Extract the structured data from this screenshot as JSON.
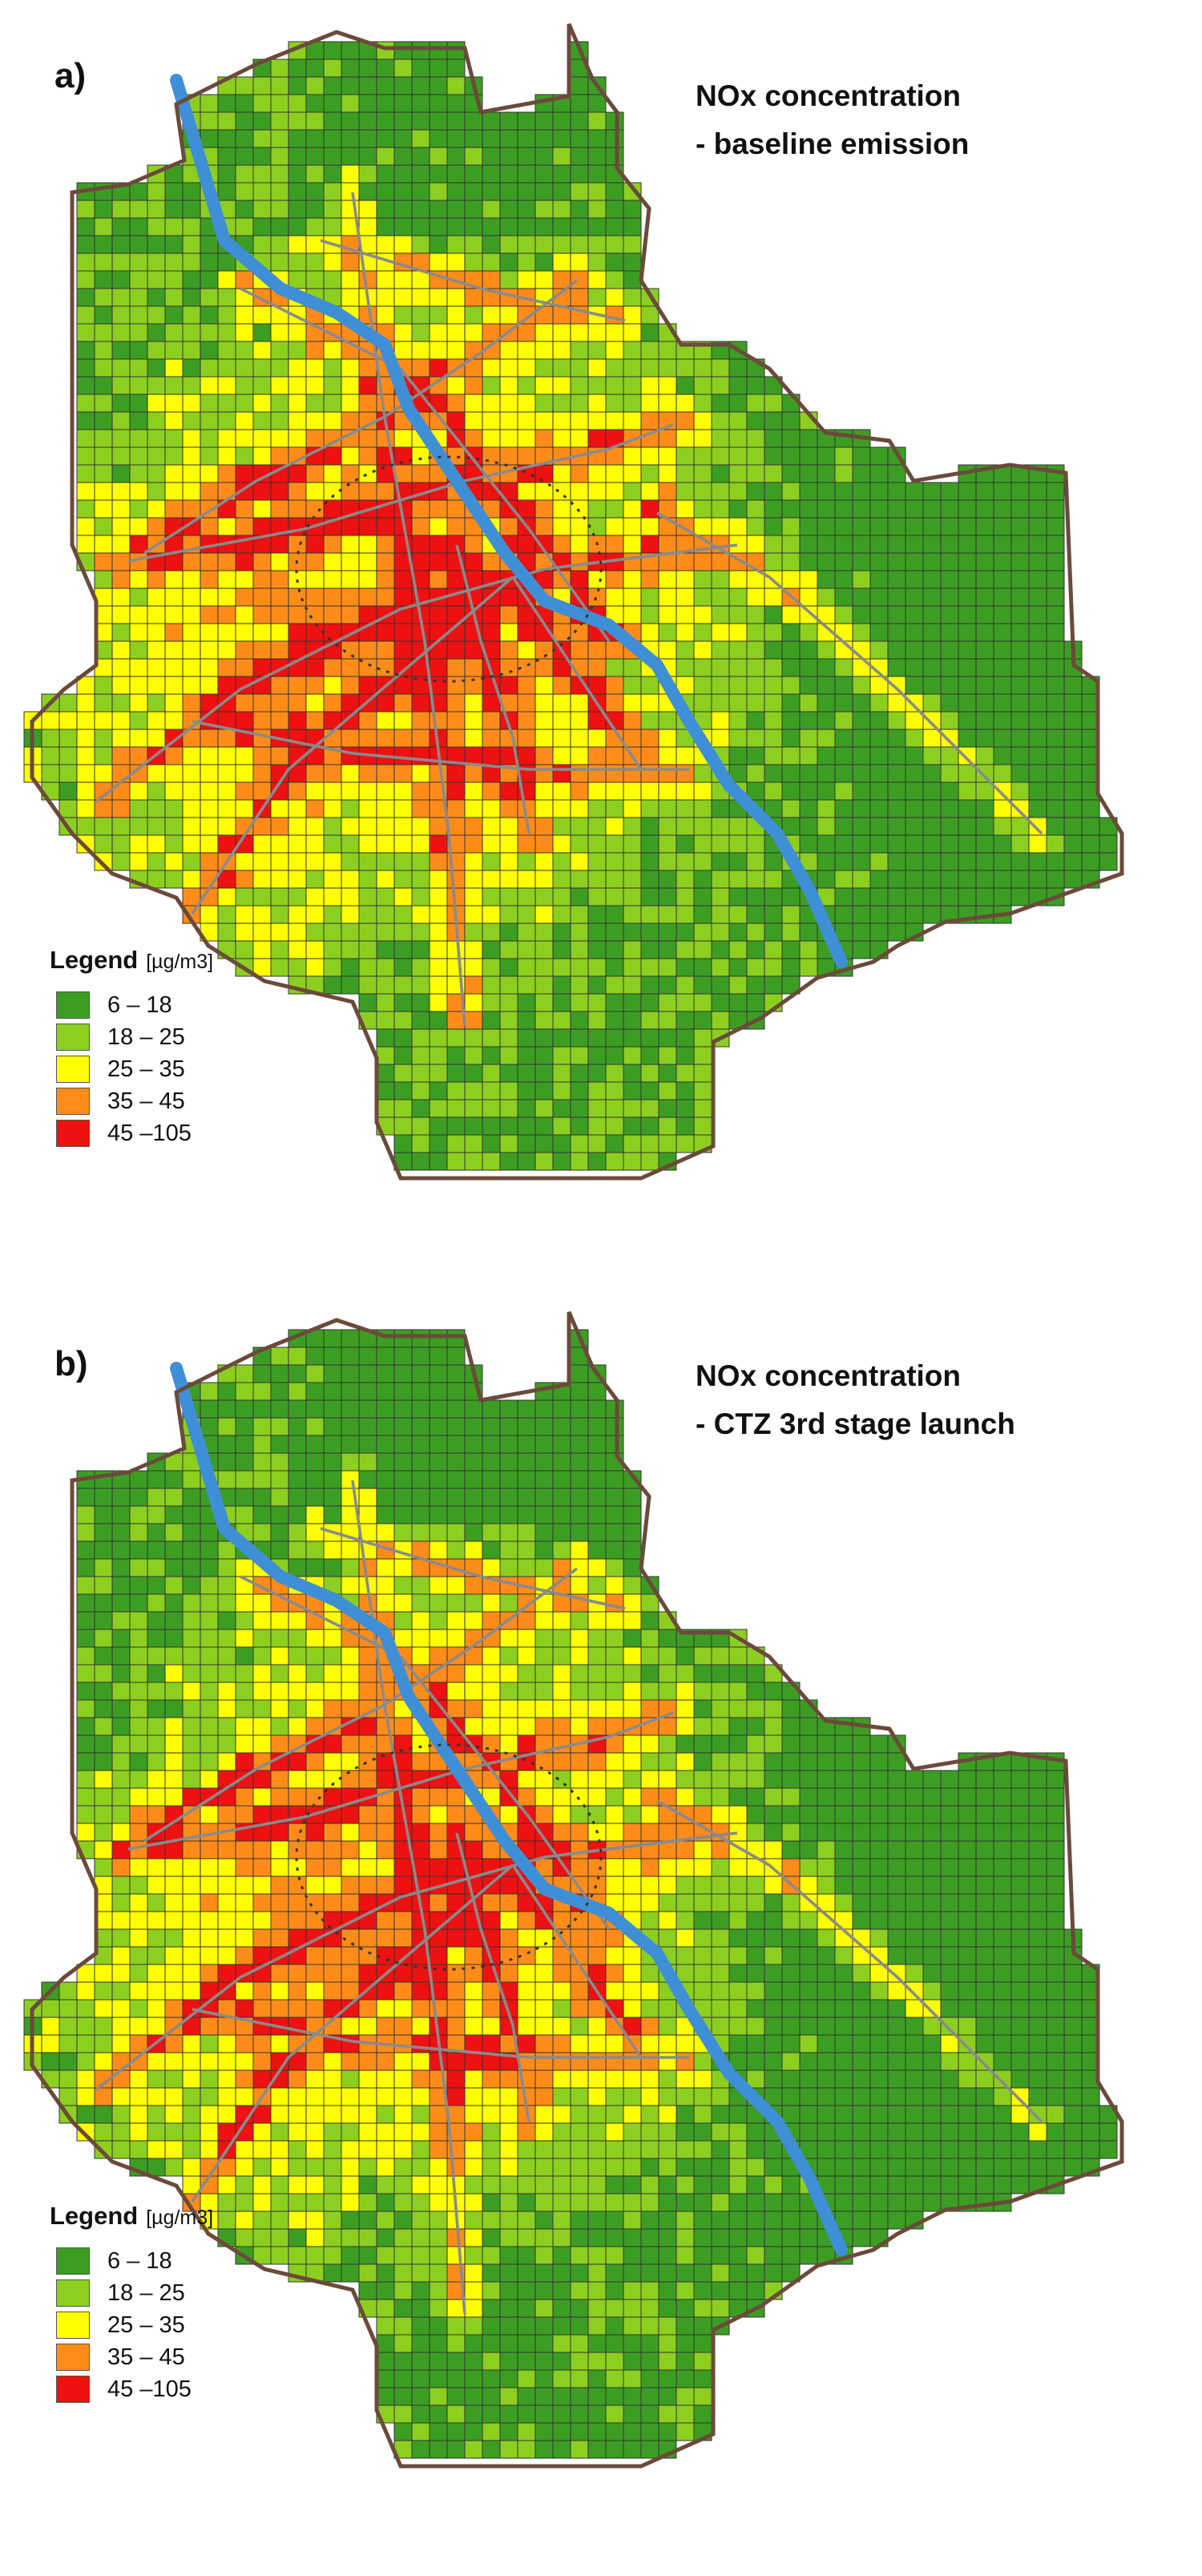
{
  "panels": [
    {
      "letter": "a)",
      "title_line1": "NOx concentration",
      "title_line2": "- baseline emission"
    },
    {
      "letter": "b)",
      "title_line1": "NOx concentration",
      "title_line2": "- CTZ 3rd stage launch"
    }
  ],
  "legend": {
    "title": "Legend",
    "unit": "[µg/m3]",
    "classes": [
      {
        "label": "6 – 18",
        "color": "#3c9d23"
      },
      {
        "label": "18 – 25",
        "color": "#8ccf1f"
      },
      {
        "label": "25 – 35",
        "color": "#ffff00"
      },
      {
        "label": "35 – 45",
        "color": "#ff8c19"
      },
      {
        "label": "45 –105",
        "color": "#ee1111"
      }
    ]
  },
  "map_colors": {
    "grid_line": "#333333",
    "river": "#3f8fd6",
    "river_edge": "#2a6ea8",
    "roads": "#8a8a8a",
    "boundary": "#6b4a3a"
  }
}
